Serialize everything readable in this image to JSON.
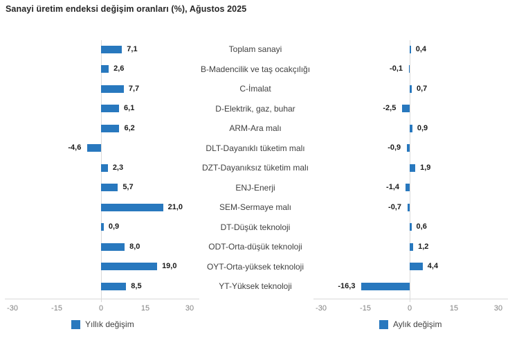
{
  "chart_data": {
    "type": "bar",
    "orientation": "horizontal",
    "title": "Sanayi üretim endeksi değişim oranları (%), Ağustos 2025",
    "categories": [
      "Toplam sanayi",
      "B-Madencilik ve taş ocakçılığı",
      "C-İmalat",
      "D-Elektrik, gaz, buhar",
      "ARM-Ara malı",
      "DLT-Dayanıklı tüketim malı",
      "DZT-Dayanıksız tüketim malı",
      "ENJ-Enerji",
      "SEM-Sermaye malı",
      "DT-Düşük teknoloji",
      "ODT-Orta-düşük teknoloji",
      "OYT-Orta-yüksek teknoloji",
      "YT-Yüksek teknoloji"
    ],
    "series": [
      {
        "name": "Yıllık değişim",
        "values": [
          7.1,
          2.6,
          7.7,
          6.1,
          6.2,
          -4.6,
          2.3,
          5.7,
          21.0,
          0.9,
          8.0,
          19.0,
          8.5
        ],
        "labels": [
          "7,1",
          "2,6",
          "7,7",
          "6,1",
          "6,2",
          "-4,6",
          "2,3",
          "5,7",
          "21,0",
          "0,9",
          "8,0",
          "19,0",
          "8,5"
        ]
      },
      {
        "name": "Aylık değişim",
        "values": [
          0.4,
          -0.1,
          0.7,
          -2.5,
          0.9,
          -0.9,
          1.9,
          -1.4,
          -0.7,
          0.6,
          1.2,
          4.4,
          -16.3
        ],
        "labels": [
          "0,4",
          "-0,1",
          "0,7",
          "-2,5",
          "0,9",
          "-0,9",
          "1,9",
          "-1,4",
          "-0,7",
          "0,6",
          "1,2",
          "4,4",
          "-16,3"
        ]
      }
    ],
    "xlim": [
      -30,
      30
    ],
    "x_ticks": [
      -30,
      -15,
      0,
      15,
      30
    ],
    "x_tick_labels": [
      "-30",
      "-15",
      "0",
      "15",
      "30"
    ],
    "grid": "off",
    "legend_position": "bottom",
    "bar_color": "#2878BE"
  },
  "colors": {
    "bar": "#2878BE",
    "axis_line": "#D9D9D9",
    "tick_text": "#808080",
    "value_text": "#1A1A1A",
    "category_text": "#404040",
    "title_text": "#262626"
  }
}
